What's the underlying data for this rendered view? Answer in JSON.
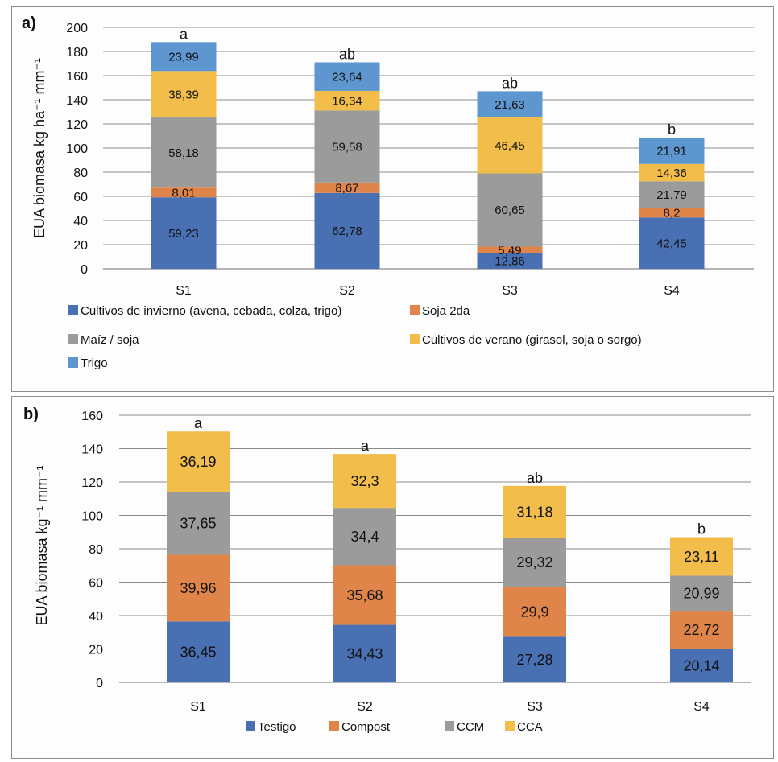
{
  "chart_data": [
    {
      "type": "bar",
      "stacked": true,
      "panel_label": "a)",
      "title": "",
      "xlabel": "",
      "ylabel": "EUA biomasa kg ha⁻¹ mm⁻¹",
      "ylim": [
        0,
        200
      ],
      "yticks": [
        0,
        20,
        40,
        60,
        80,
        100,
        120,
        140,
        160,
        180,
        200
      ],
      "grid": true,
      "categories": [
        "S1",
        "S2",
        "S3",
        "S4"
      ],
      "significance_letters": [
        "a",
        "ab",
        "ab",
        "b"
      ],
      "series": [
        {
          "name": "Cultivos de invierno (avena, cebada, colza, trigo)",
          "color": "#4a70b4",
          "values": [
            59.23,
            62.78,
            12.86,
            42.45
          ],
          "labels": [
            "59,23",
            "62,78",
            "12,86",
            "42,45"
          ]
        },
        {
          "name": "Soja 2da",
          "color": "#e0854a",
          "values": [
            8.01,
            8.67,
            5.49,
            8.2
          ],
          "labels": [
            "8,01",
            "8,67",
            "5,49",
            "8,2"
          ]
        },
        {
          "name": "Maíz / soja",
          "color": "#9b9b9b",
          "values": [
            58.18,
            59.58,
            60.65,
            21.79
          ],
          "labels": [
            "58,18",
            "59,58",
            "60,65",
            "21,79"
          ]
        },
        {
          "name": "Cultivos de verano (girasol, soja o sorgo)",
          "color": "#f2bd4b",
          "values": [
            38.39,
            16.34,
            46.45,
            14.36
          ],
          "labels": [
            "38,39",
            "16,34",
            "46,45",
            "14,36"
          ]
        },
        {
          "name": "Trigo",
          "color": "#5e97d0",
          "values": [
            23.99,
            23.64,
            21.63,
            21.91
          ],
          "labels": [
            "23,99",
            "23,64",
            "21,63",
            "21,91"
          ]
        }
      ],
      "legend_position": "bottom"
    },
    {
      "type": "bar",
      "stacked": true,
      "panel_label": "b)",
      "title": "",
      "xlabel": "",
      "ylabel": "EUA biomasa kg⁻¹ mm⁻¹",
      "ylim": [
        0,
        160
      ],
      "yticks": [
        0,
        20,
        40,
        60,
        80,
        100,
        120,
        140,
        160
      ],
      "grid": true,
      "categories": [
        "S1",
        "S2",
        "S3",
        "S4"
      ],
      "significance_letters": [
        "a",
        "a",
        "ab",
        "b"
      ],
      "series": [
        {
          "name": "Testigo",
          "color": "#4a70b4",
          "values": [
            36.45,
            34.43,
            27.28,
            20.14
          ],
          "labels": [
            "36,45",
            "34,43",
            "27,28",
            "20,14"
          ]
        },
        {
          "name": "Compost",
          "color": "#e0854a",
          "values": [
            39.96,
            35.68,
            29.9,
            22.72
          ],
          "labels": [
            "39,96",
            "35,68",
            "29,9",
            "22,72"
          ]
        },
        {
          "name": "CCM",
          "color": "#9b9b9b",
          "values": [
            37.65,
            34.4,
            29.32,
            20.99
          ],
          "labels": [
            "37,65",
            "34,4",
            "29,32",
            "20,99"
          ]
        },
        {
          "name": "CCA",
          "color": "#f2bd4b",
          "values": [
            36.19,
            32.3,
            31.18,
            23.11
          ],
          "labels": [
            "36,19",
            "32,3",
            "31,18",
            "23,11"
          ]
        }
      ],
      "legend_position": "bottom"
    }
  ]
}
